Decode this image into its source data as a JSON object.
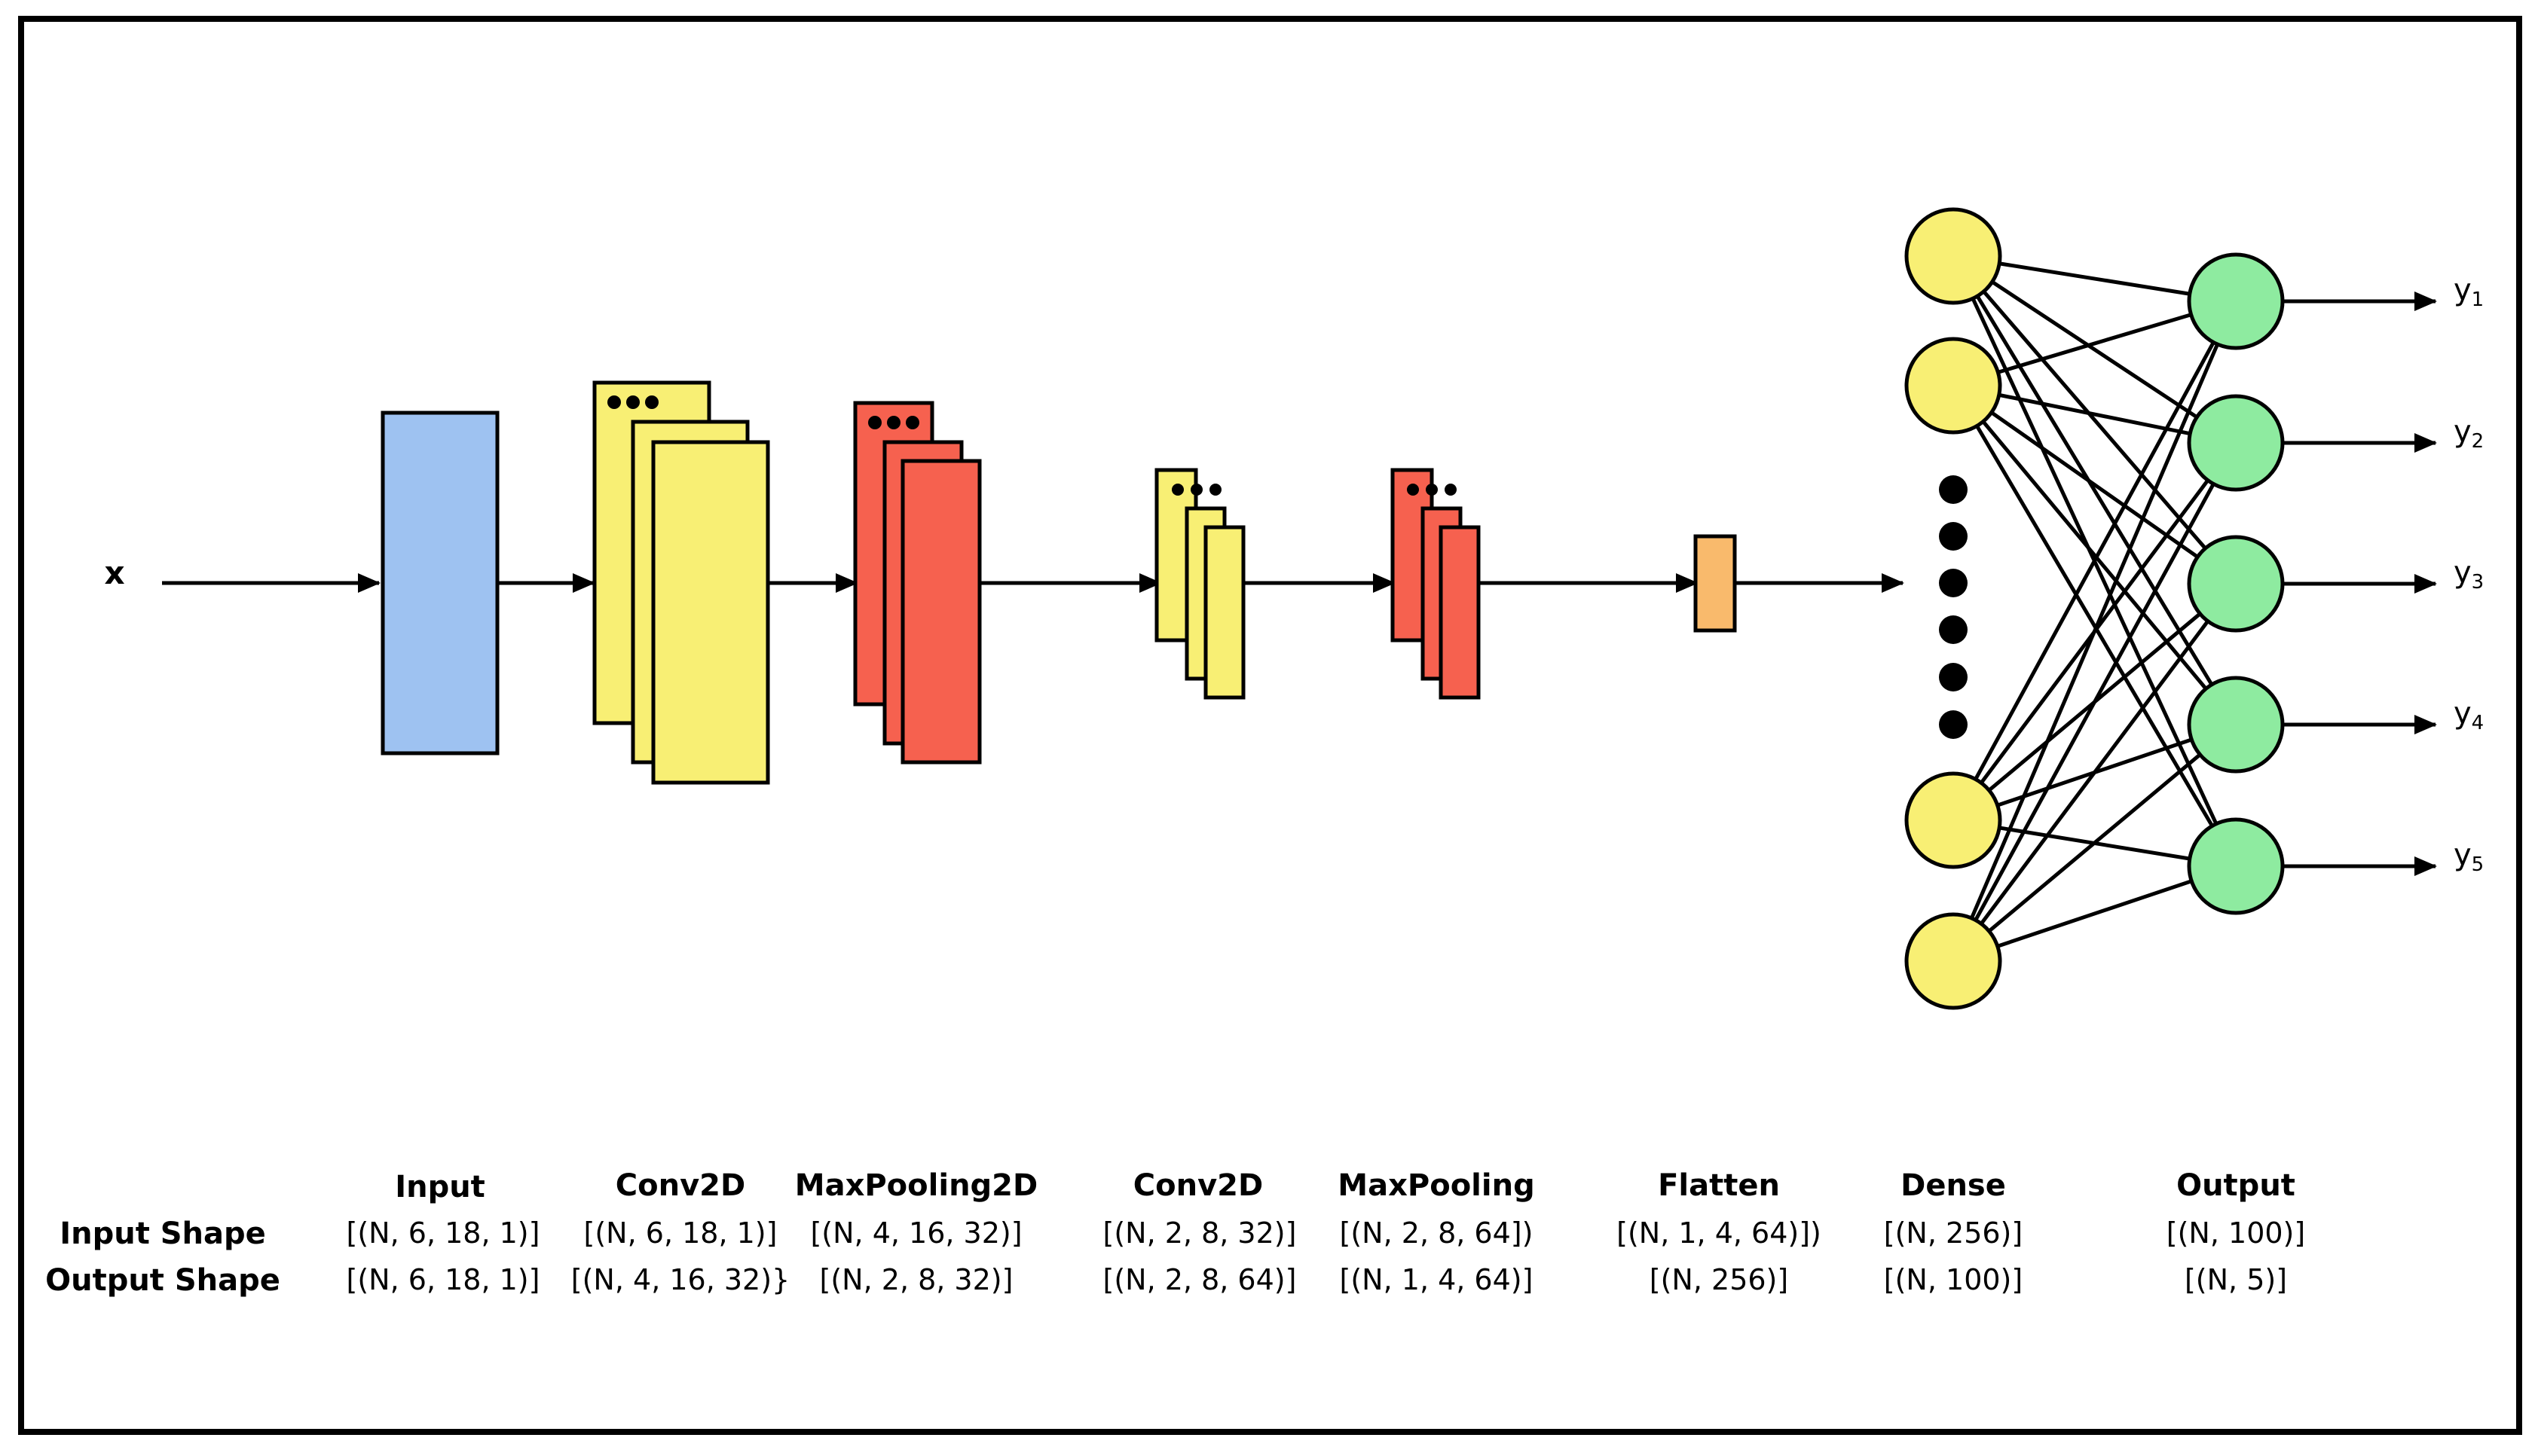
{
  "input_symbol": "x",
  "outputs": [
    {
      "base": "y",
      "sub": "1"
    },
    {
      "base": "y",
      "sub": "2"
    },
    {
      "base": "y",
      "sub": "3"
    },
    {
      "base": "y",
      "sub": "4"
    },
    {
      "base": "y",
      "sub": "5"
    }
  ],
  "colors": {
    "input": "#9ec2f1",
    "conv": "#f8ef74",
    "pool": "#f6614f",
    "flatten": "#f9ba6c",
    "dense": "#f8ef74",
    "output": "#8eeba0",
    "stroke": "#000000"
  },
  "rows": {
    "input_shape": "Input Shape",
    "output_shape": "Output Shape"
  },
  "layers": [
    {
      "name": "Input",
      "input_shape": "[(N, 6, 18, 1)]",
      "output_shape": "[(N, 6, 18, 1)]"
    },
    {
      "name": "Conv2D",
      "input_shape": "[(N, 6, 18, 1)]",
      "output_shape": "[(N, 4, 16, 32)}"
    },
    {
      "name": "MaxPooling2D",
      "input_shape": "[(N, 4, 16, 32)]",
      "output_shape": "[(N, 2, 8, 32)]"
    },
    {
      "name": "Conv2D",
      "input_shape": "[(N, 2, 8, 32)]",
      "output_shape": "[(N, 2, 8, 64)]"
    },
    {
      "name": "MaxPooling",
      "input_shape": "[(N, 2, 8, 64])",
      "output_shape": "[(N, 1, 4, 64)]"
    },
    {
      "name": "Flatten",
      "input_shape": "[(N, 1, 4, 64)])",
      "output_shape": "[(N, 256)]"
    },
    {
      "name": "Dense",
      "input_shape": "[(N, 256)]",
      "output_shape": "[(N, 100)]"
    },
    {
      "name": "Output",
      "input_shape": "[(N, 100)]",
      "output_shape": "[(N, 5)]"
    }
  ]
}
